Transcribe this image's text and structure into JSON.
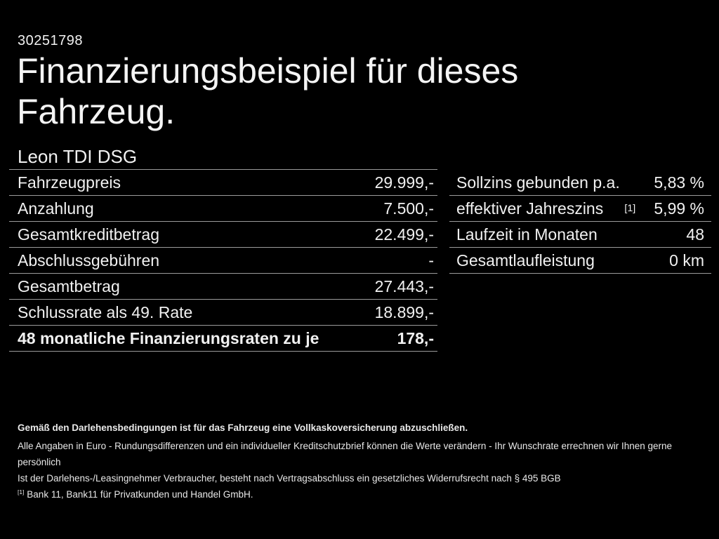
{
  "header": {
    "id_number": "30251798",
    "title_line1": "Finanzierungsbeispiel für dieses",
    "title_line2": "Fahrzeug.",
    "vehicle_name": "Leon TDI DSG"
  },
  "left_table": {
    "rows": [
      {
        "label": "Fahrzeugpreis",
        "value": "29.999,-",
        "bold": false
      },
      {
        "label": "Anzahlung",
        "value": "7.500,-",
        "bold": false
      },
      {
        "label": "Gesamtkreditbetrag",
        "value": "22.499,-",
        "bold": false
      },
      {
        "label": "Abschlussgebühren",
        "value": "-",
        "bold": false
      },
      {
        "label": "Gesamtbetrag",
        "value": "27.443,-",
        "bold": false
      },
      {
        "label": "Schlussrate als 49. Rate",
        "value": "18.899,-",
        "bold": false
      },
      {
        "label": "48 monatliche Finanzierungsraten zu je",
        "value": "178,-",
        "bold": true
      }
    ]
  },
  "right_table": {
    "rows": [
      {
        "label": "Sollzins gebunden p.a.",
        "footnote": "",
        "value": "5,83 %",
        "bold": false
      },
      {
        "label": "effektiver Jahreszins",
        "footnote": "[1]",
        "value": "5,99 %",
        "bold": false
      },
      {
        "label": "Laufzeit in Monaten",
        "footnote": "",
        "value": "48",
        "bold": false
      },
      {
        "label": "Gesamtlaufleistung",
        "footnote": "",
        "value": "0 km",
        "bold": false
      }
    ]
  },
  "footer": {
    "line1": "Gemäß den Darlehensbedingungen ist für das Fahrzeug eine Vollkaskoversicherung abzuschließen.",
    "line2": "Alle Angaben in Euro - Rundungsdifferenzen und ein individueller Kreditschutzbrief können die Werte verändern - Ihr Wunschrate errechnen wir Ihnen gerne persönlich",
    "line3": "Ist der Darlehens-/Leasingnehmer Verbraucher, besteht nach Vertragsabschluss ein gesetzliches Widerrufsrecht nach § 495 BGB",
    "footnote_marker": "[1]",
    "footnote_text": "Bank 11, Bank11 für Privatkunden und Handel GmbH."
  },
  "colors": {
    "background": "#000000",
    "text": "#f1f1f1",
    "divider": "#9b9b9b"
  }
}
